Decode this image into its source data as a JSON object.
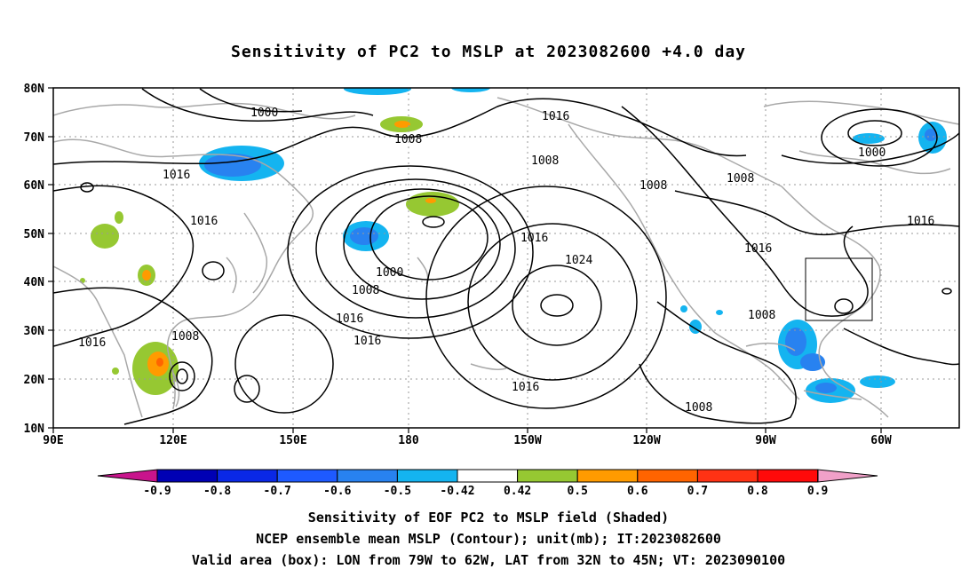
{
  "title": "Sensitivity of PC2 to MSLP at 2023082600 +4.0 day",
  "lat_labels": [
    "80N",
    "70N",
    "60N",
    "50N",
    "40N",
    "30N",
    "20N",
    "10N"
  ],
  "lon_labels": [
    "90E",
    "120E",
    "150E",
    "180",
    "150W",
    "120W",
    "90W",
    "60W"
  ],
  "contour_labels": [
    {
      "text": "1000"
    },
    {
      "text": "1008"
    },
    {
      "text": "1016"
    },
    {
      "text": "1008"
    },
    {
      "text": "1008"
    },
    {
      "text": "1000"
    },
    {
      "text": "1016"
    },
    {
      "text": "1016"
    },
    {
      "text": "1016"
    },
    {
      "text": "1008"
    },
    {
      "text": "1000"
    },
    {
      "text": "1008"
    },
    {
      "text": "1016"
    },
    {
      "text": "1024"
    },
    {
      "text": "1016"
    },
    {
      "text": "1016"
    },
    {
      "text": "1016"
    },
    {
      "text": "1008"
    },
    {
      "text": "1008"
    },
    {
      "text": "1016"
    }
  ],
  "colorbar": {
    "ticks": [
      "-0.9",
      "-0.8",
      "-0.7",
      "-0.6",
      "-0.5",
      "-0.42",
      "0.42",
      "0.5",
      "0.6",
      "0.7",
      "0.8",
      "0.9"
    ],
    "colors": [
      "#c8148c",
      "#0000b4",
      "#0a28e6",
      "#1e5aff",
      "#2882f0",
      "#14b4f0",
      "#ffffff",
      "#96c832",
      "#ff9b00",
      "#ff6400",
      "#ff3214",
      "#ff0a0a",
      "#f0a0c8"
    ]
  },
  "captions": [
    "Sensitivity of EOF PC2 to MSLP field (Shaded)",
    "NCEP ensemble mean MSLP (Contour); unit(mb); IT:2023082600",
    "Valid area (box): LON from 79W to 62W, LAT from 32N to 45N; VT: 2023090100"
  ]
}
